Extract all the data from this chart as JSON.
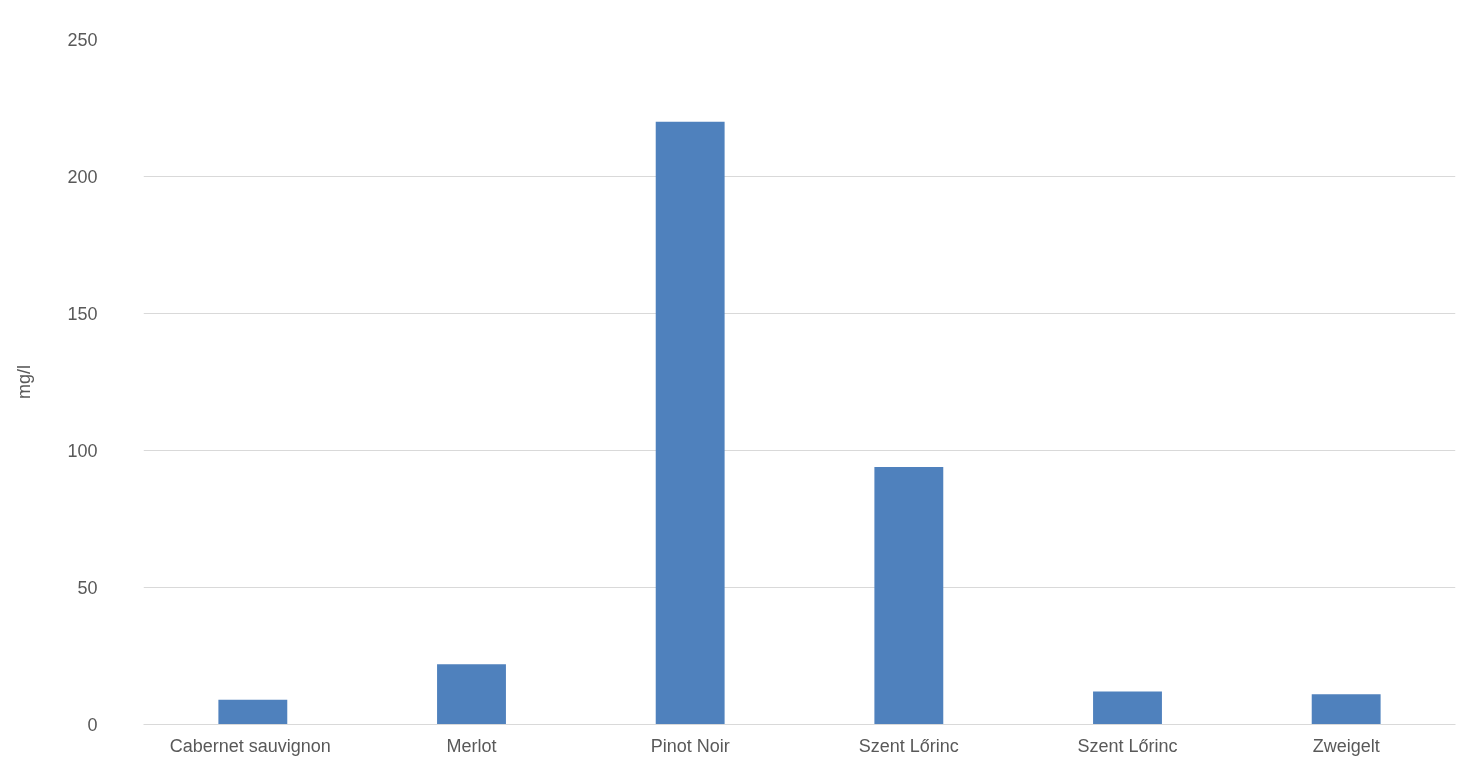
{
  "chart_data": {
    "type": "bar",
    "ylabel": "mg/l",
    "categories": [
      "Cabernet  sauvignon",
      "Merlot",
      "Pinot Noir",
      "Szent Lőrinc",
      "Szent Lőrinc",
      "Zweigelt"
    ],
    "values": [
      9,
      22,
      220,
      94,
      12,
      11
    ],
    "color": "#4f81bd",
    "ylim": [
      0,
      250
    ],
    "yticks": [
      0,
      50,
      100,
      150,
      200,
      250
    ],
    "grid": "y"
  }
}
